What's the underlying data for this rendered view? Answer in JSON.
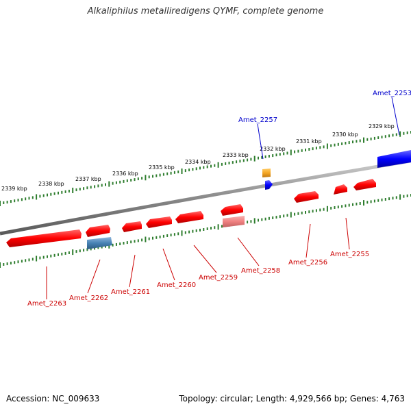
{
  "title": "Alkaliphilus metalliredigens QYMF, complete genome",
  "footer": {
    "accession": "Accession: NC_009633",
    "summary": "Topology: circular; Length: 4,929,566 bp; Genes: 4,763"
  },
  "colors": {
    "backbone": "#8a8a8a",
    "tick": "#2e7d2e",
    "forward_gene": "#ff1a1a",
    "forward_gene_alt": "#f08080",
    "reverse_gene": "#4682b4",
    "label_red": "#cc0000",
    "label_blue": "#0000cc",
    "blue_gene": "#0000ff",
    "orange_gene": "#f5a623"
  },
  "ticks": [
    {
      "label": "2329 kbp"
    },
    {
      "label": "2330 kbp"
    },
    {
      "label": "2331 kbp"
    },
    {
      "label": "2332 kbp"
    },
    {
      "label": "2333 kbp"
    },
    {
      "label": "2334 kbp"
    },
    {
      "label": "2335 kbp"
    },
    {
      "label": "2336 kbp"
    },
    {
      "label": "2337 kbp"
    },
    {
      "label": "2338 kbp"
    },
    {
      "label": "2339 kbp"
    }
  ],
  "genes": [
    {
      "name": "Amet_2253",
      "strand": "forward",
      "color": "blue"
    },
    {
      "name": "Amet_2255",
      "strand": "reverse",
      "color": "red"
    },
    {
      "name": "Amet_2256",
      "strand": "reverse",
      "color": "red"
    },
    {
      "name": "Amet_2257",
      "strand": "forward",
      "color": "blue"
    },
    {
      "name": "Amet_2258",
      "strand": "reverse",
      "color": "red"
    },
    {
      "name": "Amet_2259",
      "strand": "reverse",
      "color": "red"
    },
    {
      "name": "Amet_2260",
      "strand": "reverse",
      "color": "red"
    },
    {
      "name": "Amet_2261",
      "strand": "reverse",
      "color": "red"
    },
    {
      "name": "Amet_2262",
      "strand": "reverse",
      "color": "red"
    },
    {
      "name": "Amet_2263",
      "strand": "reverse",
      "color": "red"
    }
  ]
}
